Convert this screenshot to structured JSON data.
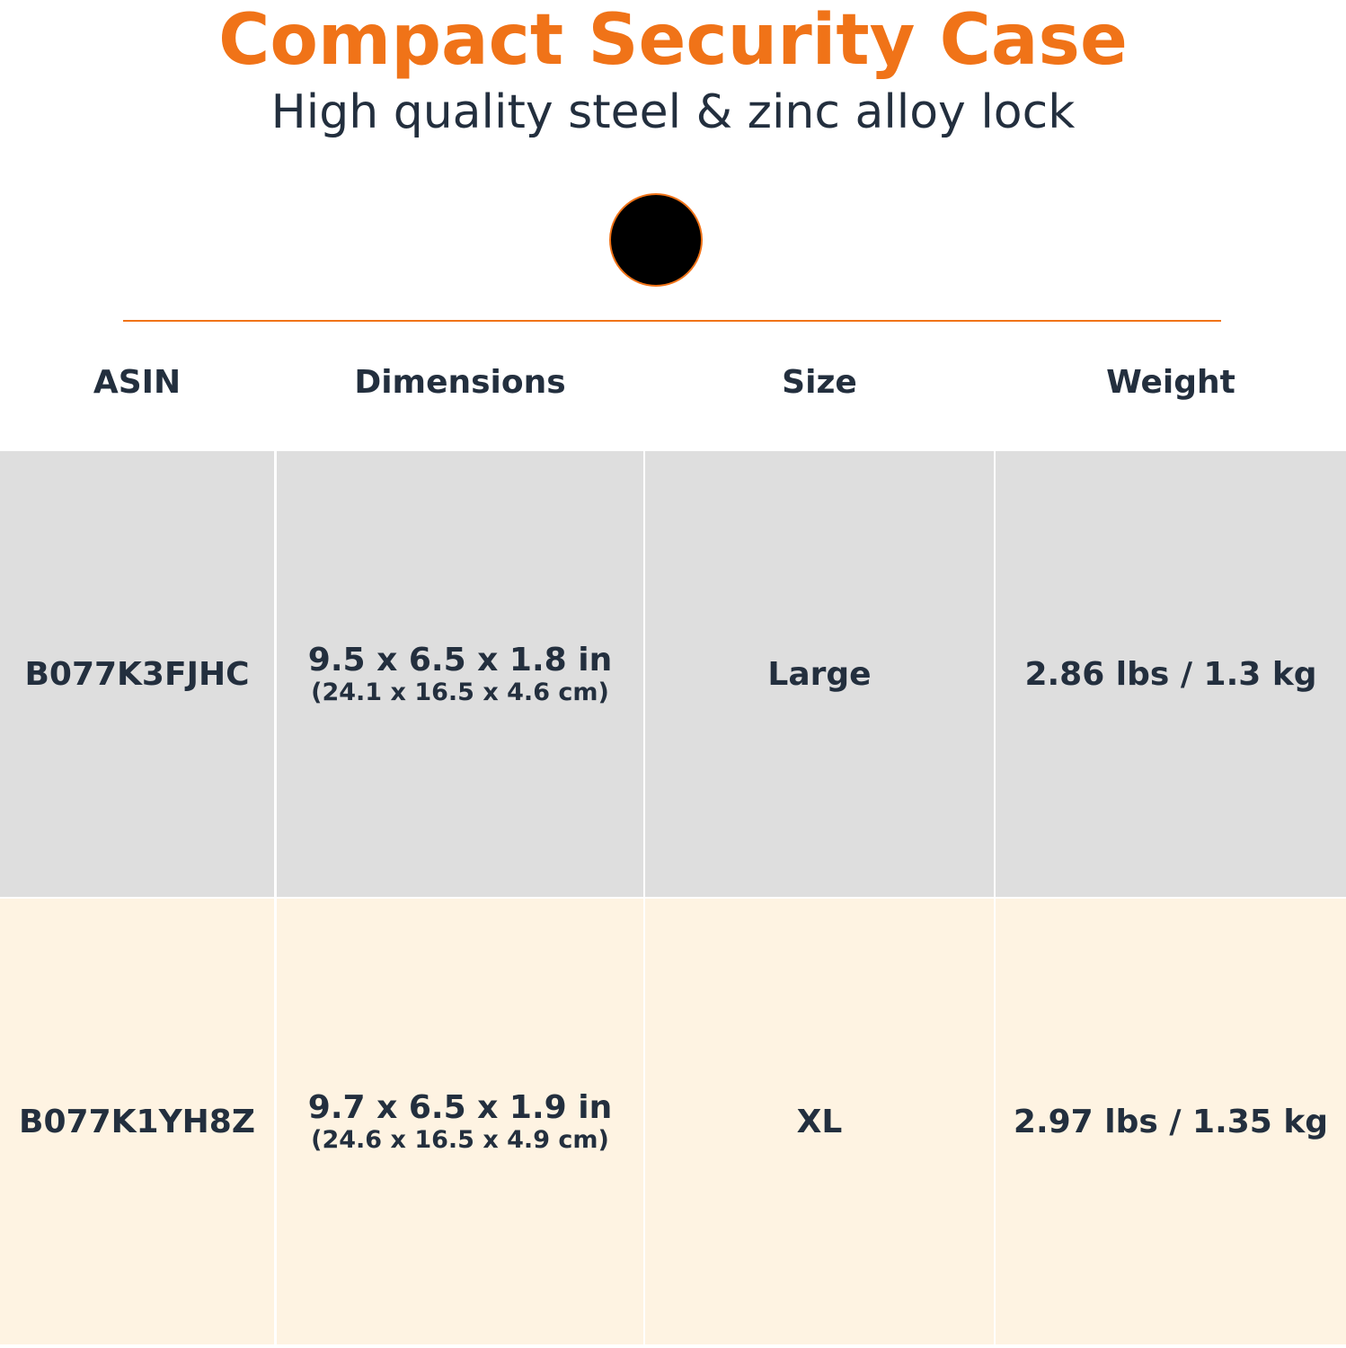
{
  "header": {
    "title": "Compact Security Case",
    "subtitle": "High quality steel & zinc alloy lock"
  },
  "table": {
    "columns": [
      "ASIN",
      "Dimensions",
      "Size",
      "Weight"
    ],
    "rows": [
      {
        "asin": "B077K3FJHC",
        "dimensions": "9.5 x 6.5 x 1.8 in",
        "dimensions_metric": "(24.1 x 16.5 x 4.6 cm)",
        "size": "Large",
        "weight": "2.86 lbs / 1.3 kg"
      },
      {
        "asin": "B077K1YH8Z",
        "dimensions": "9.7 x 6.5 x 1.9 in",
        "dimensions_metric": "(24.6 x 16.5 x 4.9 cm)",
        "size": "XL",
        "weight": "2.97 lbs / 1.35 kg"
      }
    ]
  }
}
